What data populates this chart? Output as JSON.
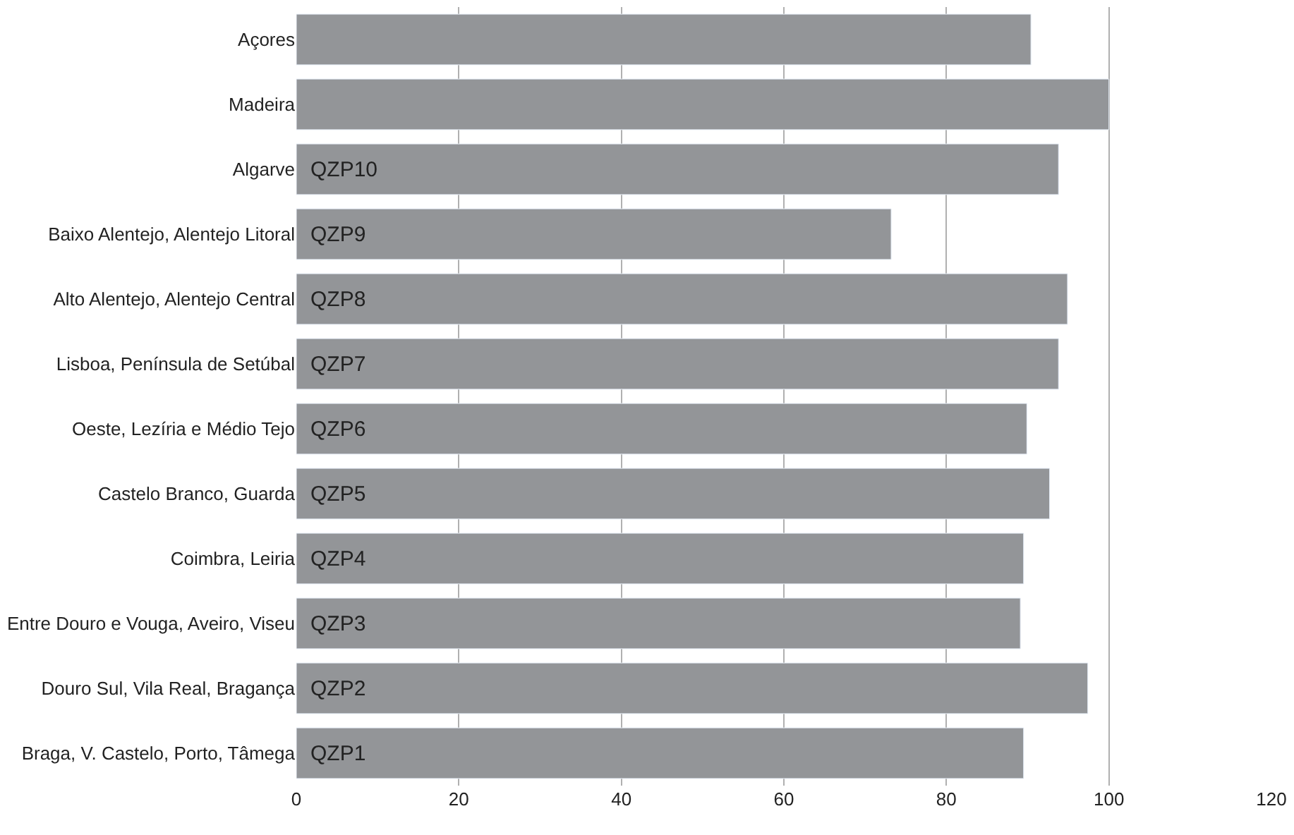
{
  "chart_data": {
    "type": "bar",
    "orientation": "horizontal",
    "categories": [
      "Açores",
      "Madeira",
      "Algarve",
      "Baixo Alentejo, Alentejo Litoral",
      "Alto Alentejo, Alentejo Central",
      "Lisboa, Península de Setúbal",
      "Oeste, Lezíria e Médio Tejo",
      "Castelo Branco, Guarda",
      "Coimbra, Leiria",
      "Entre Douro e Vouga, Aveiro, Viseu",
      "Douro Sul, Vila Real, Bragança",
      "Braga, V. Castelo, Porto, Tâmega"
    ],
    "values": [
      90.4,
      100,
      93.8,
      73.2,
      94.9,
      93.8,
      89.9,
      92.7,
      89.5,
      89.1,
      97.4,
      89.5
    ],
    "color": "#939598",
    "xlim": [
      0,
      120
    ],
    "xticks": [
      0,
      20,
      40,
      60,
      80,
      100,
      120
    ],
    "grid": "x",
    "annotations": [
      {
        "text": "QZP10",
        "y": "Algarve"
      },
      {
        "text": "QZP9",
        "y": "Baixo Alentejo, Alentejo Litoral"
      },
      {
        "text": "QZP8",
        "y": "Alto Alentejo, Alentejo Central"
      },
      {
        "text": "QZP7",
        "y": "Lisboa, Península de Setúbal"
      },
      {
        "text": "QZP6",
        "y": "Oeste, Lezíria e Médio Tejo"
      },
      {
        "text": "QZP5",
        "y": "Castelo Branco, Guarda"
      },
      {
        "text": "QZP4",
        "y": "Coimbra, Leiria"
      },
      {
        "text": "QZP3",
        "y": "Entre Douro e Vouga, Aveiro, Viseu"
      },
      {
        "text": "QZP2",
        "y": "Douro Sul, Vila Real, Bragança"
      },
      {
        "text": "QZP1",
        "y": "Braga, V. Castelo, Porto, Tâmega"
      }
    ]
  }
}
